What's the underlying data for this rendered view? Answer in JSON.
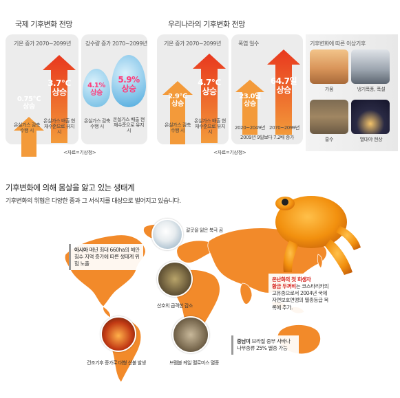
{
  "global": {
    "title": "국제 기후변화 전망",
    "temp_card": {
      "title": "기온 증가 2070~2099년",
      "low_value": "0.75℃",
      "low_suffix": "상승",
      "low_caption": "온실가스 감축 수행 시",
      "high_value": "3.7℃",
      "high_suffix": "상승",
      "high_caption": "온실가스 배출 현재수준으로 유지 시"
    },
    "rain_card": {
      "title": "강수량 증가 2070~2099년",
      "low_value": "4.1%",
      "low_suffix": "상승",
      "low_caption": "온실가스 감축 수행 시",
      "high_value": "5.9%",
      "high_suffix": "상승",
      "high_caption": "온실가스 배출 현재수준으로 유지 시"
    },
    "source": "<자료=기상청>"
  },
  "korea": {
    "title": "우리나라의 기후변화 전망",
    "temp_card": {
      "title": "기온 증가 2070~2099년",
      "low_value": "2.9℃",
      "low_suffix": "상승",
      "low_caption": "온실가스 감축 수행 시",
      "high_value": "4.7℃",
      "high_suffix": "상승",
      "high_caption": "온실가스 배출 현재수준으로 유지 시"
    },
    "heat_card": {
      "title": "폭염 일수",
      "low_value": "23.0일",
      "low_suffix": "상승",
      "low_caption": "2020~2049년",
      "high_value": "64.7일",
      "high_suffix": "상승",
      "high_caption": "2070~2099년",
      "note": "2009년 9일보다 7.2배 증가"
    },
    "source": "<자료=기상청>"
  },
  "extreme": {
    "title": "기후변화에 따른 이상기후",
    "items": [
      "가뭄",
      "냉기폭풍, 폭설",
      "홍수",
      "열대야 현상"
    ]
  },
  "ecosystem": {
    "title": "기후변화에 의해 몸살을 앓고 있는 생태계",
    "subtitle": "기후변화의 위협은 다양한 종과 그 서식지를 대상으로 벌어지고 있습니다.",
    "bear_label": "갈곳을 잃은 북극 곰",
    "coral_label": "산호의 급격한 감소",
    "fire_label": "건조기후 증가로 대형 산불 발생",
    "rat_label": "브램블 케일 멜로미스 멸종",
    "asia": {
      "name": "아시아",
      "text": "매년 최대 660ha의 해안침수 지역 증가에 따른 생태계 위험 노출"
    },
    "toad": {
      "line1": "온난화의 첫 희생자",
      "line2": "황금 두꺼비",
      "line2_rest": "는 코스타리카의 고유종으로서 2004년 국제자연보호연맹의 멸종등급 목록에 추가."
    },
    "south_america": {
      "name": "중남미",
      "text": "브라질 중부 사바나 나무종류 25% 멸종 가능"
    }
  },
  "colors": {
    "orange": "#f07a1e",
    "orange_dark": "#d85a10",
    "red": "#e8381e",
    "drop_blue": "#7fc5e8",
    "accent_red": "#d6231e"
  }
}
